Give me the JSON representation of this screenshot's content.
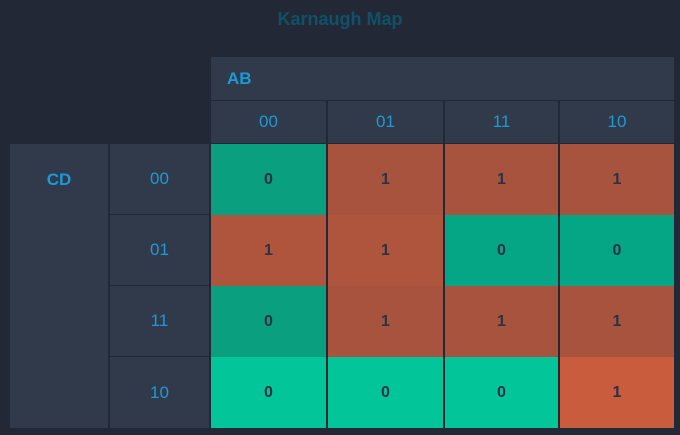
{
  "title": "Karnaugh Map",
  "row_variable": "CD",
  "col_variable": "AB",
  "col_labels": [
    "00",
    "01",
    "11",
    "10"
  ],
  "row_labels": [
    "00",
    "01",
    "11",
    "10"
  ],
  "grid": [
    [
      "0",
      "1",
      "1",
      "1"
    ],
    [
      "1",
      "1",
      "0",
      "0"
    ],
    [
      "0",
      "1",
      "1",
      "1"
    ],
    [
      "0",
      "0",
      "0",
      "1"
    ]
  ],
  "colors": {
    "background": "#222836",
    "header": "#313a4b",
    "accent_text": "#1c9ad6",
    "title_text": "#0f5268",
    "one_cell": "#a8533e",
    "zero_cell": "#05a686",
    "zero_cell_bright": "#02c59a",
    "one_cell_bright": "#c85c3c"
  },
  "cell_colors": [
    [
      "#0a9f7e",
      "#a8533e",
      "#a8533e",
      "#a8533e"
    ],
    [
      "#b0553d",
      "#b0553d",
      "#05a686",
      "#05a686"
    ],
    [
      "#0a9f7e",
      "#a8533e",
      "#a8533e",
      "#a8533e"
    ],
    [
      "#02c59a",
      "#02c59a",
      "#02c59a",
      "#c85c3c"
    ]
  ]
}
